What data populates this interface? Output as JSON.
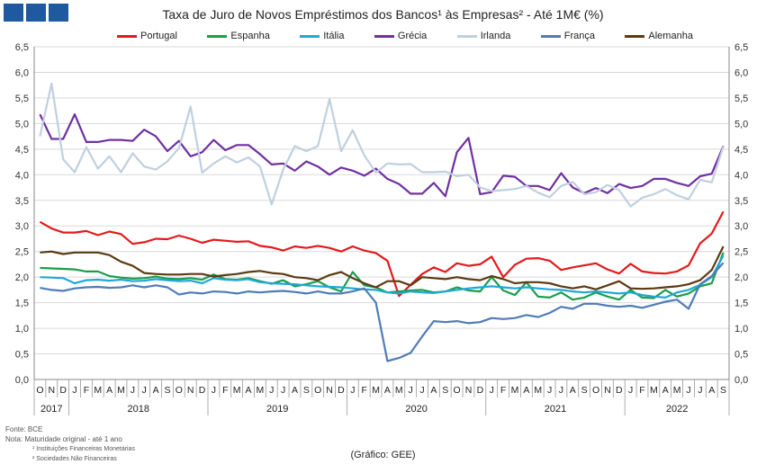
{
  "title": "Taxa de Juro de Novos Empréstimos dos Bancos¹ às Empresas² - Até 1M€ (%)",
  "credit": "(Gráfico: GEE)",
  "footnotes": {
    "source": "Fonte: BCE",
    "note": "Nota: Maturidade original - até 1 ano",
    "fn1": "¹ Instituições Financeiras Monetárias",
    "fn2": "² Sociedades Não Financeiras"
  },
  "chart_data": {
    "type": "line",
    "categories": [
      "O",
      "N",
      "D",
      "J",
      "F",
      "M",
      "A",
      "M",
      "J",
      "J",
      "A",
      "S",
      "O",
      "N",
      "D",
      "J",
      "F",
      "M",
      "A",
      "M",
      "J",
      "J",
      "A",
      "S",
      "O",
      "N",
      "D",
      "J",
      "F",
      "M",
      "A",
      "M",
      "J",
      "J",
      "A",
      "S",
      "O",
      "N",
      "D",
      "J",
      "F",
      "M",
      "A",
      "M",
      "J",
      "J",
      "A",
      "S",
      "O",
      "N",
      "D",
      "J",
      "F",
      "M",
      "A",
      "M",
      "J",
      "J",
      "A",
      "S"
    ],
    "years": [
      {
        "label": "2017",
        "start": 0,
        "end": 2
      },
      {
        "label": "2018",
        "start": 3,
        "end": 14
      },
      {
        "label": "2019",
        "start": 15,
        "end": 26
      },
      {
        "label": "2020",
        "start": 27,
        "end": 38
      },
      {
        "label": "2021",
        "start": 39,
        "end": 50
      },
      {
        "label": "2022",
        "start": 51,
        "end": 59
      }
    ],
    "ylim": [
      0,
      6.5
    ],
    "yticks": [
      "0,0",
      "0,5",
      "1,0",
      "1,5",
      "2,0",
      "2,5",
      "3,0",
      "3,5",
      "4,0",
      "4,5",
      "5,0",
      "5,5",
      "6,0",
      "6,5"
    ],
    "series": [
      {
        "name": "Portugal",
        "color": "#e31a1c",
        "values": [
          3.08,
          2.95,
          2.87,
          2.87,
          2.9,
          2.82,
          2.89,
          2.84,
          2.65,
          2.68,
          2.75,
          2.74,
          2.81,
          2.75,
          2.67,
          2.73,
          2.71,
          2.69,
          2.7,
          2.61,
          2.58,
          2.52,
          2.6,
          2.57,
          2.61,
          2.57,
          2.5,
          2.6,
          2.52,
          2.47,
          2.32,
          1.63,
          1.85,
          2.06,
          2.19,
          2.1,
          2.27,
          2.22,
          2.25,
          2.4,
          2.0,
          2.24,
          2.36,
          2.37,
          2.32,
          2.14,
          2.19,
          2.23,
          2.27,
          2.15,
          2.07,
          2.26,
          2.11,
          2.08,
          2.07,
          2.11,
          2.23,
          2.66,
          2.85,
          3.28
        ]
      },
      {
        "name": "Espanha",
        "color": "#1a9e4a",
        "values": [
          2.18,
          2.17,
          2.16,
          2.15,
          2.11,
          2.11,
          2.02,
          1.99,
          1.97,
          1.98,
          2.01,
          1.97,
          1.96,
          1.98,
          1.95,
          2.05,
          1.96,
          1.95,
          1.98,
          1.92,
          1.87,
          1.94,
          1.82,
          1.86,
          1.92,
          1.8,
          1.72,
          2.1,
          1.84,
          1.8,
          1.7,
          1.72,
          1.74,
          1.75,
          1.7,
          1.72,
          1.8,
          1.74,
          1.72,
          2.0,
          1.74,
          1.65,
          1.9,
          1.62,
          1.6,
          1.7,
          1.56,
          1.6,
          1.7,
          1.62,
          1.56,
          1.75,
          1.6,
          1.59,
          1.75,
          1.62,
          1.68,
          1.82,
          1.88,
          2.48
        ]
      },
      {
        "name": "Itália",
        "color": "#1fa8d8",
        "values": [
          2.0,
          1.99,
          1.98,
          1.88,
          1.94,
          1.95,
          1.93,
          1.95,
          1.92,
          1.93,
          1.96,
          1.94,
          1.92,
          1.93,
          1.88,
          1.98,
          1.95,
          1.94,
          1.96,
          1.9,
          1.88,
          1.87,
          1.86,
          1.84,
          1.82,
          1.81,
          1.8,
          1.78,
          1.76,
          1.75,
          1.7,
          1.68,
          1.72,
          1.7,
          1.69,
          1.72,
          1.75,
          1.78,
          1.8,
          1.82,
          1.8,
          1.78,
          1.8,
          1.78,
          1.76,
          1.75,
          1.72,
          1.7,
          1.72,
          1.7,
          1.68,
          1.7,
          1.65,
          1.62,
          1.6,
          1.7,
          1.75,
          1.85,
          2.0,
          2.42
        ]
      },
      {
        "name": "Grécia",
        "color": "#7030a0",
        "values": [
          5.18,
          4.7,
          4.7,
          5.18,
          4.64,
          4.64,
          4.68,
          4.68,
          4.66,
          4.88,
          4.75,
          4.46,
          4.66,
          4.36,
          4.44,
          4.68,
          4.48,
          4.58,
          4.58,
          4.4,
          4.2,
          4.22,
          4.08,
          4.26,
          4.16,
          4.0,
          4.14,
          4.08,
          3.98,
          4.12,
          3.92,
          3.82,
          3.63,
          3.63,
          3.84,
          3.58,
          4.44,
          4.72,
          3.62,
          3.66,
          3.98,
          3.96,
          3.78,
          3.78,
          3.7,
          4.03,
          3.75,
          3.64,
          3.74,
          3.64,
          3.82,
          3.74,
          3.78,
          3.92,
          3.92,
          3.84,
          3.78,
          3.97,
          4.02,
          4.56
        ]
      },
      {
        "name": "Irlanda",
        "color": "#c0cfe0",
        "values": [
          4.75,
          5.78,
          4.3,
          4.05,
          4.54,
          4.12,
          4.36,
          4.05,
          4.42,
          4.16,
          4.1,
          4.26,
          4.52,
          5.33,
          4.04,
          4.22,
          4.36,
          4.24,
          4.34,
          4.16,
          3.42,
          4.1,
          4.56,
          4.46,
          4.56,
          5.48,
          4.46,
          4.87,
          4.38,
          4.04,
          4.22,
          4.2,
          4.21,
          4.05,
          4.05,
          4.06,
          3.97,
          4.0,
          3.75,
          3.68,
          3.7,
          3.72,
          3.78,
          3.65,
          3.56,
          3.78,
          3.86,
          3.62,
          3.66,
          3.8,
          3.7,
          3.38,
          3.55,
          3.62,
          3.72,
          3.6,
          3.52,
          3.9,
          3.85,
          4.55
        ]
      },
      {
        "name": "França",
        "color": "#4f7cb8",
        "values": [
          1.79,
          1.75,
          1.73,
          1.78,
          1.8,
          1.81,
          1.79,
          1.8,
          1.84,
          1.8,
          1.84,
          1.8,
          1.66,
          1.7,
          1.68,
          1.72,
          1.71,
          1.68,
          1.72,
          1.7,
          1.72,
          1.73,
          1.71,
          1.68,
          1.72,
          1.68,
          1.68,
          1.72,
          1.78,
          1.5,
          0.36,
          0.42,
          0.52,
          0.84,
          1.14,
          1.12,
          1.14,
          1.1,
          1.12,
          1.2,
          1.18,
          1.2,
          1.26,
          1.22,
          1.3,
          1.42,
          1.38,
          1.48,
          1.48,
          1.44,
          1.42,
          1.44,
          1.4,
          1.46,
          1.52,
          1.56,
          1.38,
          1.86,
          2.02,
          2.28
        ]
      },
      {
        "name": "Alemanha",
        "color": "#5c3a12",
        "values": [
          2.48,
          2.5,
          2.45,
          2.48,
          2.48,
          2.48,
          2.43,
          2.3,
          2.22,
          2.08,
          2.06,
          2.05,
          2.05,
          2.06,
          2.06,
          2.01,
          2.04,
          2.06,
          2.1,
          2.12,
          2.08,
          2.06,
          2.0,
          1.98,
          1.94,
          2.04,
          2.1,
          1.98,
          1.88,
          1.8,
          1.92,
          1.92,
          1.84,
          2.0,
          1.98,
          1.96,
          2.0,
          1.96,
          1.94,
          2.02,
          1.96,
          1.88,
          1.9,
          1.9,
          1.88,
          1.82,
          1.78,
          1.82,
          1.76,
          1.84,
          1.92,
          1.78,
          1.77,
          1.78,
          1.8,
          1.82,
          1.86,
          1.94,
          2.14,
          2.6
        ]
      }
    ]
  }
}
